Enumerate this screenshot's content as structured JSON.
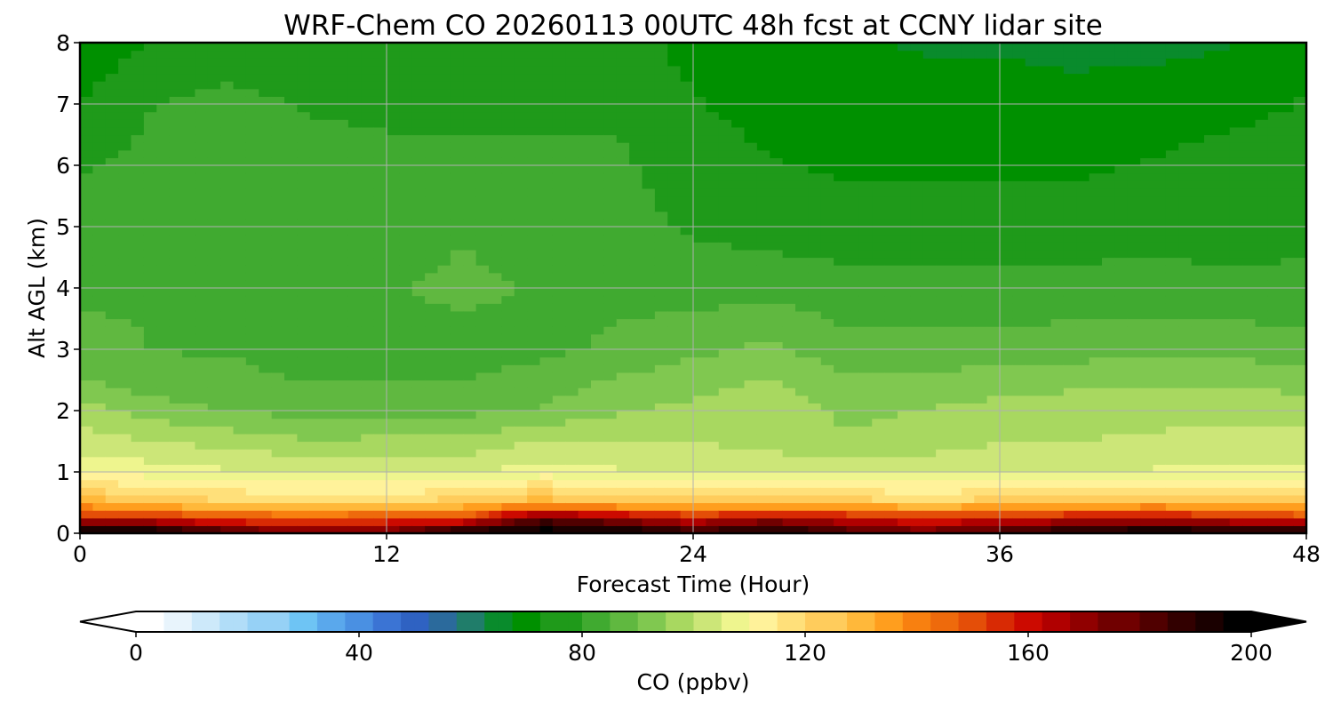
{
  "chart_data": {
    "type": "heatmap",
    "title": "WRF-Chem CO  20260113 00UTC 48h fcst at CCNY lidar site",
    "xlabel": "Forecast Time (Hour)",
    "ylabel": "Alt AGL (km)",
    "xlim": [
      0,
      48
    ],
    "ylim": [
      0,
      8
    ],
    "x_ticks": [
      "0",
      "12",
      "24",
      "36",
      "48"
    ],
    "y_ticks": [
      "0",
      "1",
      "2",
      "3",
      "4",
      "5",
      "6",
      "7",
      "8"
    ],
    "grid": true,
    "colorbar": {
      "label": "CO  (ppbv)",
      "range": [
        0,
        200
      ],
      "ticks": [
        "0",
        "40",
        "80",
        "120",
        "160",
        "200"
      ],
      "extend": "both",
      "levels": 80,
      "colors": [
        "#ffffff",
        "#e8f4fc",
        "#cde9fa",
        "#b1ddf8",
        "#96d1f6",
        "#6ec4f4",
        "#5aa8ec",
        "#4a90e2",
        "#3b74d4",
        "#2f62c2",
        "#2b6a9c",
        "#207d6a",
        "#098b2c",
        "#009000",
        "#1f9a1a",
        "#40aa30",
        "#60b840",
        "#80c850",
        "#a8d860",
        "#cce678",
        "#eef58e",
        "#fff29a",
        "#ffe07a",
        "#ffcc5c",
        "#ffb83a",
        "#ff9e1e",
        "#f88010",
        "#ee6a0c",
        "#e44e08",
        "#d82a04",
        "#cc0a00",
        "#b00000",
        "#900000",
        "#700000",
        "#500000",
        "#320000",
        "#1a0000",
        "#000000"
      ]
    },
    "profile_levels_km": [
      0,
      0.25,
      0.5,
      1,
      1.5,
      2,
      2.5,
      3,
      4,
      5,
      6,
      7,
      8
    ],
    "profiles": [
      {
        "hour": 0,
        "co": [
          200,
          160,
          130,
          110,
          102,
          98,
          90,
          86,
          83,
          82,
          78,
          74,
          70
        ]
      },
      {
        "hour": 3,
        "co": [
          200,
          158,
          125,
          108,
          100,
          92,
          86,
          84,
          84,
          83,
          81,
          79,
          74
        ]
      },
      {
        "hour": 6,
        "co": [
          185,
          150,
          122,
          106,
          98,
          89,
          85,
          84,
          84,
          84,
          83,
          81,
          75
        ]
      },
      {
        "hour": 9,
        "co": [
          175,
          148,
          120,
          105,
          95,
          88,
          84,
          83,
          84,
          84,
          82,
          78,
          74
        ]
      },
      {
        "hour": 12,
        "co": [
          180,
          150,
          122,
          104,
          96,
          88,
          84,
          83,
          84,
          82,
          80,
          78,
          74
        ]
      },
      {
        "hour": 15,
        "co": [
          198,
          152,
          124,
          104,
          96,
          88,
          84,
          83,
          85,
          84,
          80,
          78,
          75
        ]
      },
      {
        "hour": 18,
        "co": [
          200,
          180,
          130,
          108,
          100,
          90,
          86,
          83,
          84,
          82,
          80,
          78,
          76
        ]
      },
      {
        "hour": 21,
        "co": [
          200,
          170,
          126,
          106,
          100,
          94,
          90,
          85,
          83,
          81,
          80,
          78,
          76
        ]
      },
      {
        "hour": 24,
        "co": [
          190,
          160,
          124,
          104,
          100,
          96,
          93,
          88,
          82,
          78,
          76,
          74,
          72
        ]
      },
      {
        "hour": 27,
        "co": [
          195,
          168,
          126,
          104,
          98,
          99,
          95,
          91,
          82,
          77,
          74,
          72,
          70
        ]
      },
      {
        "hour": 30,
        "co": [
          185,
          162,
          124,
          104,
          96,
          93,
          90,
          86,
          81,
          76,
          73,
          70,
          69
        ]
      },
      {
        "hour": 33,
        "co": [
          178,
          156,
          122,
          104,
          97,
          95,
          91,
          86,
          81,
          76,
          73,
          70,
          68
        ]
      },
      {
        "hour": 36,
        "co": [
          185,
          158,
          124,
          104,
          100,
          97,
          92,
          86,
          81,
          76,
          73,
          70,
          68
        ]
      },
      {
        "hour": 39,
        "co": [
          195,
          162,
          126,
          104,
          100,
          98,
          93,
          87,
          81,
          76,
          73,
          70,
          67
        ]
      },
      {
        "hour": 42,
        "co": [
          200,
          165,
          128,
          106,
          101,
          98,
          94,
          88,
          81,
          77,
          74,
          71,
          67
        ]
      },
      {
        "hour": 45,
        "co": [
          198,
          158,
          126,
          106,
          102,
          98,
          94,
          88,
          80,
          77,
          76,
          72,
          68
        ]
      },
      {
        "hour": 48,
        "co": [
          195,
          154,
          124,
          106,
          102,
          98,
          92,
          86,
          80,
          78,
          76,
          74,
          72
        ]
      }
    ]
  }
}
